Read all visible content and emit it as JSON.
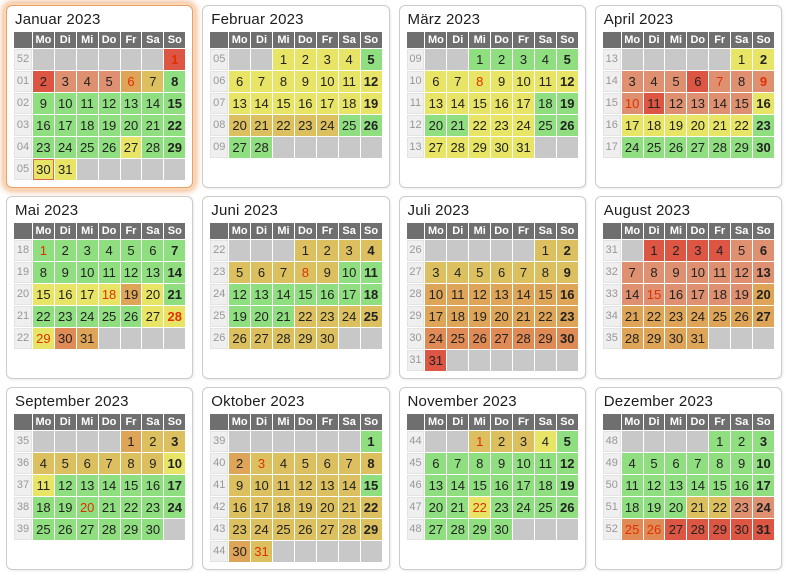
{
  "palette": {
    "g": "#8fde80",
    "y": "#e8e465",
    "t": "#dcc05f",
    "o1": "#dea558",
    "o2": "#e08b55",
    "s": "#de9070",
    "r": "#dc5643",
    "e": "#c8c8c8"
  },
  "colors": {
    "holiday_text": "#e03000",
    "selected_border": "#e2654b",
    "header_bg": "#6f6f6f",
    "weeknum_bg": "#efefef",
    "empty_bg": "#c8c8c8"
  },
  "day_headers": [
    "Mo",
    "Di",
    "Mi",
    "Do",
    "Fr",
    "Sa",
    "So"
  ],
  "months": [
    {
      "name": "Januar 2023",
      "highlight": true,
      "weeks": [
        {
          "n": "52",
          "d": [
            "",
            "",
            "",
            "",
            "",
            "",
            "1|r|h"
          ]
        },
        {
          "n": "01",
          "d": [
            "2|r",
            "3|s",
            "4|s",
            "5|s",
            "6|o1|h",
            "7|t",
            "8|g"
          ]
        },
        {
          "n": "02",
          "d": [
            "9|g",
            "10|g",
            "11|g",
            "12|g",
            "13|g",
            "14|g",
            "15|g"
          ]
        },
        {
          "n": "03",
          "d": [
            "16|g",
            "17|g",
            "18|g",
            "19|g",
            "20|g",
            "21|g",
            "22|g"
          ]
        },
        {
          "n": "04",
          "d": [
            "23|g",
            "24|g",
            "25|g",
            "26|g",
            "27|y",
            "28|g",
            "29|g"
          ]
        },
        {
          "n": "05",
          "d": [
            "30|y|s",
            "31|y",
            "",
            "",
            "",
            "",
            ""
          ]
        }
      ]
    },
    {
      "name": "Februar 2023",
      "highlight": false,
      "weeks": [
        {
          "n": "05",
          "d": [
            "",
            "",
            "1|y",
            "2|y",
            "3|y",
            "4|y",
            "5|g"
          ]
        },
        {
          "n": "06",
          "d": [
            "6|y",
            "7|y",
            "8|y",
            "9|y",
            "10|y",
            "11|y",
            "12|y"
          ]
        },
        {
          "n": "07",
          "d": [
            "13|y",
            "14|y",
            "15|y",
            "16|y",
            "17|y",
            "18|y",
            "19|y"
          ]
        },
        {
          "n": "08",
          "d": [
            "20|t",
            "21|t",
            "22|t",
            "23|t",
            "24|t",
            "25|g",
            "26|g"
          ]
        },
        {
          "n": "09",
          "d": [
            "27|g",
            "28|g",
            "",
            "",
            "",
            "",
            ""
          ]
        }
      ]
    },
    {
      "name": "März 2023",
      "highlight": false,
      "weeks": [
        {
          "n": "09",
          "d": [
            "",
            "",
            "1|g",
            "2|g",
            "3|g",
            "4|g",
            "5|g"
          ]
        },
        {
          "n": "10",
          "d": [
            "6|y",
            "7|y",
            "8|y|h",
            "9|y",
            "10|y",
            "11|y",
            "12|y"
          ]
        },
        {
          "n": "11",
          "d": [
            "13|y",
            "14|y",
            "15|y",
            "16|y",
            "17|y",
            "18|g",
            "19|g"
          ]
        },
        {
          "n": "12",
          "d": [
            "20|g",
            "21|g",
            "22|y",
            "23|y",
            "24|y",
            "25|g",
            "26|g"
          ]
        },
        {
          "n": "13",
          "d": [
            "27|y",
            "28|y",
            "29|y",
            "30|y",
            "31|y",
            "",
            ""
          ]
        }
      ]
    },
    {
      "name": "April 2023",
      "highlight": false,
      "weeks": [
        {
          "n": "13",
          "d": [
            "",
            "",
            "",
            "",
            "",
            "1|y",
            "2|y"
          ]
        },
        {
          "n": "14",
          "d": [
            "3|s",
            "4|s",
            "5|s",
            "6|r",
            "7|s|h",
            "8|s",
            "9|s|h"
          ]
        },
        {
          "n": "15",
          "d": [
            "10|s|h",
            "11|r",
            "12|s",
            "13|s",
            "14|s",
            "15|s",
            "16|y"
          ]
        },
        {
          "n": "16",
          "d": [
            "17|y",
            "18|y",
            "19|y",
            "20|y",
            "21|y",
            "22|y",
            "23|g"
          ]
        },
        {
          "n": "17",
          "d": [
            "24|g",
            "25|g",
            "26|g",
            "27|g",
            "28|g",
            "29|g",
            "30|g"
          ]
        }
      ]
    },
    {
      "name": "Mai 2023",
      "highlight": false,
      "weeks": [
        {
          "n": "18",
          "d": [
            "1|g|h",
            "2|g",
            "3|g",
            "4|g",
            "5|g",
            "6|g",
            "7|g"
          ]
        },
        {
          "n": "19",
          "d": [
            "8|g",
            "9|g",
            "10|g",
            "11|g",
            "12|g",
            "13|g",
            "14|g"
          ]
        },
        {
          "n": "20",
          "d": [
            "15|y",
            "16|y",
            "17|y",
            "18|y|h",
            "19|o1",
            "20|y",
            "21|g"
          ]
        },
        {
          "n": "21",
          "d": [
            "22|g",
            "23|g",
            "24|g",
            "25|g",
            "26|g",
            "27|y",
            "28|y|h"
          ]
        },
        {
          "n": "22",
          "d": [
            "29|y|h",
            "30|o2",
            "31|o1",
            "",
            "",
            "",
            ""
          ]
        }
      ]
    },
    {
      "name": "Juni 2023",
      "highlight": false,
      "weeks": [
        {
          "n": "22",
          "d": [
            "",
            "",
            "",
            "1|t",
            "2|t",
            "3|t",
            "4|t"
          ]
        },
        {
          "n": "23",
          "d": [
            "5|t",
            "6|t",
            "7|t",
            "8|t|h",
            "9|t",
            "10|g",
            "11|g"
          ]
        },
        {
          "n": "24",
          "d": [
            "12|g",
            "13|g",
            "14|g",
            "15|g",
            "16|g",
            "17|g",
            "18|g"
          ]
        },
        {
          "n": "25",
          "d": [
            "19|g",
            "20|g",
            "21|g",
            "22|t",
            "23|t",
            "24|t",
            "25|t"
          ]
        },
        {
          "n": "26",
          "d": [
            "26|t",
            "27|t",
            "28|t",
            "29|t",
            "30|t",
            "",
            ""
          ]
        }
      ]
    },
    {
      "name": "Juli 2023",
      "highlight": false,
      "weeks": [
        {
          "n": "26",
          "d": [
            "",
            "",
            "",
            "",
            "",
            "1|t",
            "2|t"
          ]
        },
        {
          "n": "27",
          "d": [
            "3|t",
            "4|t",
            "5|t",
            "6|t",
            "7|t",
            "8|t",
            "9|t"
          ]
        },
        {
          "n": "28",
          "d": [
            "10|o1",
            "11|o1",
            "12|o1",
            "13|o1",
            "14|o1",
            "15|o1",
            "16|o1"
          ]
        },
        {
          "n": "29",
          "d": [
            "17|o1",
            "18|o1",
            "19|o1",
            "20|o1",
            "21|o1",
            "22|o1",
            "23|o1"
          ]
        },
        {
          "n": "30",
          "d": [
            "24|o2",
            "25|o2",
            "26|o2",
            "27|o2",
            "28|o2",
            "29|o2",
            "30|o2"
          ]
        },
        {
          "n": "31",
          "d": [
            "31|r",
            "",
            "",
            "",
            "",
            "",
            ""
          ]
        }
      ]
    },
    {
      "name": "August 2023",
      "highlight": false,
      "weeks": [
        {
          "n": "31",
          "d": [
            "",
            "1|r",
            "2|r",
            "3|r",
            "4|r",
            "5|s",
            "6|s"
          ]
        },
        {
          "n": "32",
          "d": [
            "7|s",
            "8|s",
            "9|s",
            "10|s",
            "11|s",
            "12|s",
            "13|s"
          ]
        },
        {
          "n": "33",
          "d": [
            "14|s",
            "15|s|h",
            "16|s",
            "17|s",
            "18|s",
            "19|s",
            "20|o1"
          ]
        },
        {
          "n": "34",
          "d": [
            "21|o1",
            "22|o1",
            "23|o1",
            "24|o1",
            "25|o1",
            "26|o1",
            "27|o1"
          ]
        },
        {
          "n": "35",
          "d": [
            "28|o1",
            "29|o1",
            "30|o1",
            "31|o1",
            "",
            "",
            ""
          ]
        }
      ]
    },
    {
      "name": "September 2023",
      "highlight": false,
      "weeks": [
        {
          "n": "35",
          "d": [
            "",
            "",
            "",
            "",
            "1|o1",
            "2|t",
            "3|t"
          ]
        },
        {
          "n": "36",
          "d": [
            "4|t",
            "5|t",
            "6|t",
            "7|t",
            "8|t",
            "9|t",
            "10|y"
          ]
        },
        {
          "n": "37",
          "d": [
            "11|y",
            "12|g",
            "13|g",
            "14|g",
            "15|g",
            "16|g",
            "17|g"
          ]
        },
        {
          "n": "38",
          "d": [
            "18|g",
            "19|g",
            "20|g|h",
            "21|g",
            "22|g",
            "23|g",
            "24|g"
          ]
        },
        {
          "n": "39",
          "d": [
            "25|g",
            "26|g",
            "27|g",
            "28|g",
            "29|g",
            "30|g",
            ""
          ]
        }
      ]
    },
    {
      "name": "Oktober 2023",
      "highlight": false,
      "weeks": [
        {
          "n": "39",
          "d": [
            "",
            "",
            "",
            "",
            "",
            "",
            "1|g"
          ]
        },
        {
          "n": "40",
          "d": [
            "2|o1",
            "3|t|h",
            "4|t",
            "5|t",
            "6|t",
            "7|t",
            "8|t"
          ]
        },
        {
          "n": "41",
          "d": [
            "9|t",
            "10|t",
            "11|t",
            "12|t",
            "13|t",
            "14|t",
            "15|g"
          ]
        },
        {
          "n": "42",
          "d": [
            "16|t",
            "17|t",
            "18|t",
            "19|t",
            "20|t",
            "21|t",
            "22|t"
          ]
        },
        {
          "n": "43",
          "d": [
            "23|t",
            "24|t",
            "25|t",
            "26|t",
            "27|t",
            "28|t",
            "29|t"
          ]
        },
        {
          "n": "44",
          "d": [
            "30|o1",
            "31|t|h",
            "",
            "",
            "",
            "",
            ""
          ]
        }
      ]
    },
    {
      "name": "November 2023",
      "highlight": false,
      "weeks": [
        {
          "n": "44",
          "d": [
            "",
            "",
            "1|t|h",
            "2|t",
            "3|t",
            "4|y",
            "5|g"
          ]
        },
        {
          "n": "45",
          "d": [
            "6|g",
            "7|g",
            "8|g",
            "9|g",
            "10|g",
            "11|g",
            "12|g"
          ]
        },
        {
          "n": "46",
          "d": [
            "13|g",
            "14|g",
            "15|g",
            "16|g",
            "17|g",
            "18|g",
            "19|g"
          ]
        },
        {
          "n": "47",
          "d": [
            "20|g",
            "21|g",
            "22|y|h",
            "23|g",
            "24|g",
            "25|g",
            "26|g"
          ]
        },
        {
          "n": "48",
          "d": [
            "27|g",
            "28|g",
            "29|g",
            "30|g",
            "",
            "",
            ""
          ]
        }
      ]
    },
    {
      "name": "Dezember 2023",
      "highlight": false,
      "weeks": [
        {
          "n": "48",
          "d": [
            "",
            "",
            "",
            "",
            "1|g",
            "2|g",
            "3|g"
          ]
        },
        {
          "n": "49",
          "d": [
            "4|g",
            "5|g",
            "6|g",
            "7|g",
            "8|g",
            "9|g",
            "10|g"
          ]
        },
        {
          "n": "50",
          "d": [
            "11|g",
            "12|g",
            "13|g",
            "14|g",
            "15|g",
            "16|g",
            "17|g"
          ]
        },
        {
          "n": "51",
          "d": [
            "18|g",
            "19|g",
            "20|g",
            "21|t",
            "22|t",
            "23|s",
            "24|s"
          ]
        },
        {
          "n": "52",
          "d": [
            "25|o2|h",
            "26|o2|h",
            "27|r",
            "28|r",
            "29|r",
            "30|r",
            "31|r"
          ]
        }
      ]
    }
  ]
}
